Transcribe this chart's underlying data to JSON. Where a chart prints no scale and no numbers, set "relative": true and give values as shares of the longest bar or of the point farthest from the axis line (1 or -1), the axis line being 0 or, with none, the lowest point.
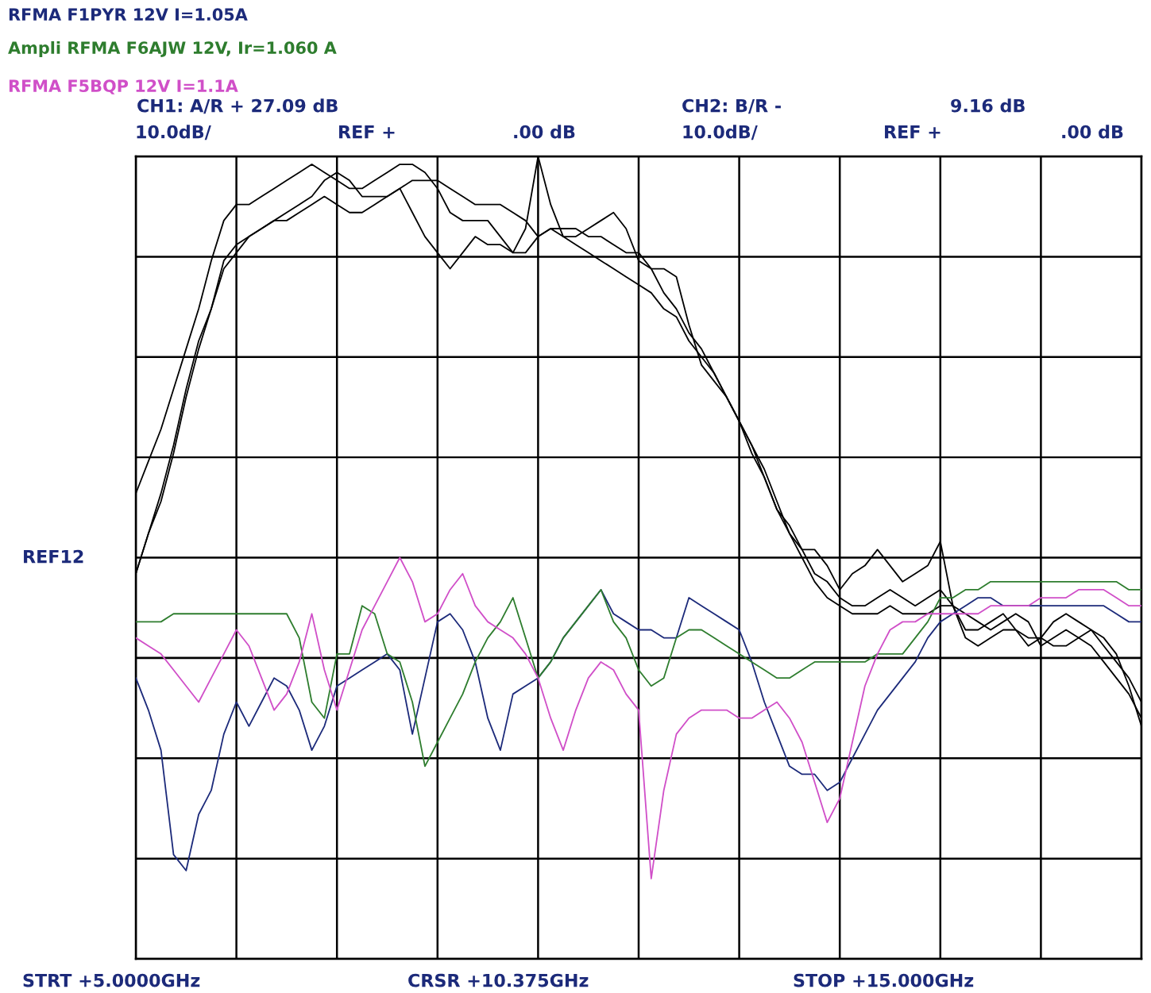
{
  "chart_data": {
    "type": "line",
    "relative": true,
    "categories": [
      null,
      null,
      null,
      null,
      null,
      null,
      null,
      null,
      null,
      null,
      null,
      null,
      null,
      null,
      null,
      null,
      null,
      null,
      null,
      null,
      null,
      null,
      null,
      null,
      null,
      null,
      null,
      null,
      null,
      null,
      null,
      null,
      null,
      null,
      null,
      null,
      null,
      null,
      null,
      null,
      null,
      null,
      null,
      null,
      null,
      null,
      null,
      null,
      null,
      null,
      null,
      null,
      null,
      null,
      null,
      null,
      null,
      null,
      null,
      null,
      null,
      null,
      null,
      null,
      null,
      null,
      null,
      null,
      null,
      null,
      null,
      null,
      null,
      null,
      null,
      null,
      null,
      null,
      null,
      null,
      null
    ],
    "grid": true,
    "marker": "none",
    "line_style": "solid",
    "annotations": [
      "CH1: A/R + 27.09 dB",
      "CH2: B/R -",
      "9.16 dB",
      "10.0dB/",
      "REF +",
      ".00 dB",
      "10.0dB/",
      "REF +",
      ".00 dB",
      "STRT +5.0000GHz",
      "CRSR +10.375GHz",
      "STOP +15.000GHz",
      "REF12"
    ],
    "series": [
      {
        "color": "#000000",
        "values": [
          0.58,
          0.62,
          0.66,
          0.71,
          0.76,
          0.81,
          0.87,
          0.92,
          0.94,
          0.94,
          0.95,
          0.96,
          0.97,
          0.98,
          0.99,
          0.98,
          0.97,
          0.96,
          0.96,
          0.97,
          0.98,
          0.99,
          0.99,
          0.98,
          0.96,
          0.93,
          0.92,
          0.92,
          0.92,
          0.9,
          0.88,
          0.91,
          1.0,
          0.94,
          0.9,
          0.9,
          0.91,
          0.92,
          0.93,
          0.91,
          0.87,
          0.86,
          0.86,
          0.85,
          0.79,
          0.74,
          0.72,
          0.7,
          0.67,
          0.64,
          0.6,
          0.56,
          0.54,
          0.51,
          0.51,
          0.49,
          0.46,
          0.48,
          0.49,
          0.51,
          0.49,
          0.47,
          0.48,
          0.49,
          0.52,
          0.44,
          0.43,
          0.42,
          0.41,
          0.42,
          0.43,
          0.42,
          0.39,
          0.4,
          0.41,
          0.4,
          0.39,
          0.37,
          0.35,
          0.33,
          0.3
        ]
      },
      {
        "color": "#000000",
        "values": [
          0.48,
          0.53,
          0.58,
          0.64,
          0.71,
          0.77,
          0.81,
          0.86,
          0.88,
          0.9,
          0.91,
          0.92,
          0.92,
          0.93,
          0.94,
          0.95,
          0.94,
          0.93,
          0.93,
          0.94,
          0.95,
          0.96,
          0.97,
          0.97,
          0.97,
          0.96,
          0.95,
          0.94,
          0.94,
          0.94,
          0.93,
          0.92,
          0.9,
          0.91,
          0.91,
          0.91,
          0.9,
          0.9,
          0.89,
          0.88,
          0.88,
          0.86,
          0.83,
          0.81,
          0.78,
          0.76,
          0.73,
          0.7,
          0.67,
          0.64,
          0.61,
          0.57,
          0.53,
          0.51,
          0.48,
          0.47,
          0.45,
          0.44,
          0.44,
          0.45,
          0.46,
          0.45,
          0.44,
          0.45,
          0.46,
          0.44,
          0.41,
          0.41,
          0.42,
          0.43,
          0.41,
          0.39,
          0.4,
          0.42,
          0.43,
          0.42,
          0.41,
          0.4,
          0.38,
          0.34,
          0.29
        ]
      },
      {
        "color": "#000000",
        "values": [
          0.48,
          0.53,
          0.57,
          0.63,
          0.7,
          0.76,
          0.81,
          0.87,
          0.89,
          0.9,
          0.91,
          0.92,
          0.93,
          0.94,
          0.95,
          0.97,
          0.98,
          0.97,
          0.95,
          0.95,
          0.95,
          0.96,
          0.93,
          0.9,
          0.88,
          0.86,
          0.88,
          0.9,
          0.89,
          0.89,
          0.88,
          0.88,
          0.9,
          0.91,
          0.9,
          0.89,
          0.88,
          0.87,
          0.86,
          0.85,
          0.84,
          0.83,
          0.81,
          0.8,
          0.77,
          0.75,
          0.73,
          0.7,
          0.67,
          0.63,
          0.6,
          0.56,
          0.53,
          0.5,
          0.47,
          0.45,
          0.44,
          0.43,
          0.43,
          0.43,
          0.44,
          0.43,
          0.43,
          0.43,
          0.44,
          0.44,
          0.4,
          0.39,
          0.4,
          0.41,
          0.41,
          0.4,
          0.4,
          0.39,
          0.39,
          0.4,
          0.41,
          0.39,
          0.37,
          0.35,
          0.32
        ]
      },
      {
        "name": "RFMA F1PYR 12V I=1.05A",
        "color": "#1c2a7a",
        "values": [
          0.35,
          0.31,
          0.26,
          0.13,
          0.11,
          0.18,
          0.21,
          0.28,
          0.32,
          0.29,
          0.32,
          0.35,
          0.34,
          0.31,
          0.26,
          0.29,
          0.34,
          0.35,
          0.36,
          0.37,
          0.38,
          0.36,
          0.28,
          0.35,
          0.42,
          0.43,
          0.41,
          0.37,
          0.3,
          0.26,
          0.33,
          0.34,
          0.35,
          0.37,
          0.4,
          0.42,
          0.44,
          0.46,
          0.43,
          0.42,
          0.41,
          0.41,
          0.4,
          0.4,
          0.45,
          0.44,
          0.43,
          0.42,
          0.41,
          0.37,
          0.32,
          0.28,
          0.24,
          0.23,
          0.23,
          0.21,
          0.22,
          0.25,
          0.28,
          0.31,
          0.33,
          0.35,
          0.37,
          0.4,
          0.42,
          0.43,
          0.44,
          0.45,
          0.45,
          0.44,
          0.44,
          0.44,
          0.44,
          0.44,
          0.44,
          0.44,
          0.44,
          0.44,
          0.43,
          0.42,
          0.42
        ]
      },
      {
        "name": "Ampli RFMA F6AJW 12V, Ir=1.060 A",
        "color": "#2e7d2e",
        "values": [
          0.42,
          0.42,
          0.42,
          0.43,
          0.43,
          0.43,
          0.43,
          0.43,
          0.43,
          0.43,
          0.43,
          0.43,
          0.43,
          0.4,
          0.32,
          0.3,
          0.38,
          0.38,
          0.44,
          0.43,
          0.38,
          0.37,
          0.32,
          0.24,
          0.27,
          0.3,
          0.33,
          0.37,
          0.4,
          0.42,
          0.45,
          0.4,
          0.35,
          0.37,
          0.4,
          0.42,
          0.44,
          0.46,
          0.42,
          0.4,
          0.36,
          0.34,
          0.35,
          0.4,
          0.41,
          0.41,
          0.4,
          0.39,
          0.38,
          0.37,
          0.36,
          0.35,
          0.35,
          0.36,
          0.37,
          0.37,
          0.37,
          0.37,
          0.37,
          0.38,
          0.38,
          0.38,
          0.4,
          0.42,
          0.45,
          0.45,
          0.46,
          0.46,
          0.47,
          0.47,
          0.47,
          0.47,
          0.47,
          0.47,
          0.47,
          0.47,
          0.47,
          0.47,
          0.47,
          0.46,
          0.46
        ]
      },
      {
        "name": "RFMA F5BQP 12V I=1.1A",
        "color": "#d04fc8",
        "values": [
          0.4,
          0.39,
          0.38,
          0.36,
          0.34,
          0.32,
          0.35,
          0.38,
          0.41,
          0.39,
          0.35,
          0.31,
          0.33,
          0.37,
          0.43,
          0.36,
          0.31,
          0.36,
          0.41,
          0.44,
          0.47,
          0.5,
          0.47,
          0.42,
          0.43,
          0.46,
          0.48,
          0.44,
          0.42,
          0.41,
          0.4,
          0.38,
          0.35,
          0.3,
          0.26,
          0.31,
          0.35,
          0.37,
          0.36,
          0.33,
          0.31,
          0.1,
          0.21,
          0.28,
          0.3,
          0.31,
          0.31,
          0.31,
          0.3,
          0.3,
          0.31,
          0.32,
          0.3,
          0.27,
          0.22,
          0.17,
          0.2,
          0.27,
          0.34,
          0.38,
          0.41,
          0.42,
          0.42,
          0.43,
          0.43,
          0.43,
          0.43,
          0.43,
          0.44,
          0.44,
          0.44,
          0.44,
          0.45,
          0.45,
          0.45,
          0.46,
          0.46,
          0.46,
          0.45,
          0.44,
          0.44
        ]
      }
    ]
  }
}
